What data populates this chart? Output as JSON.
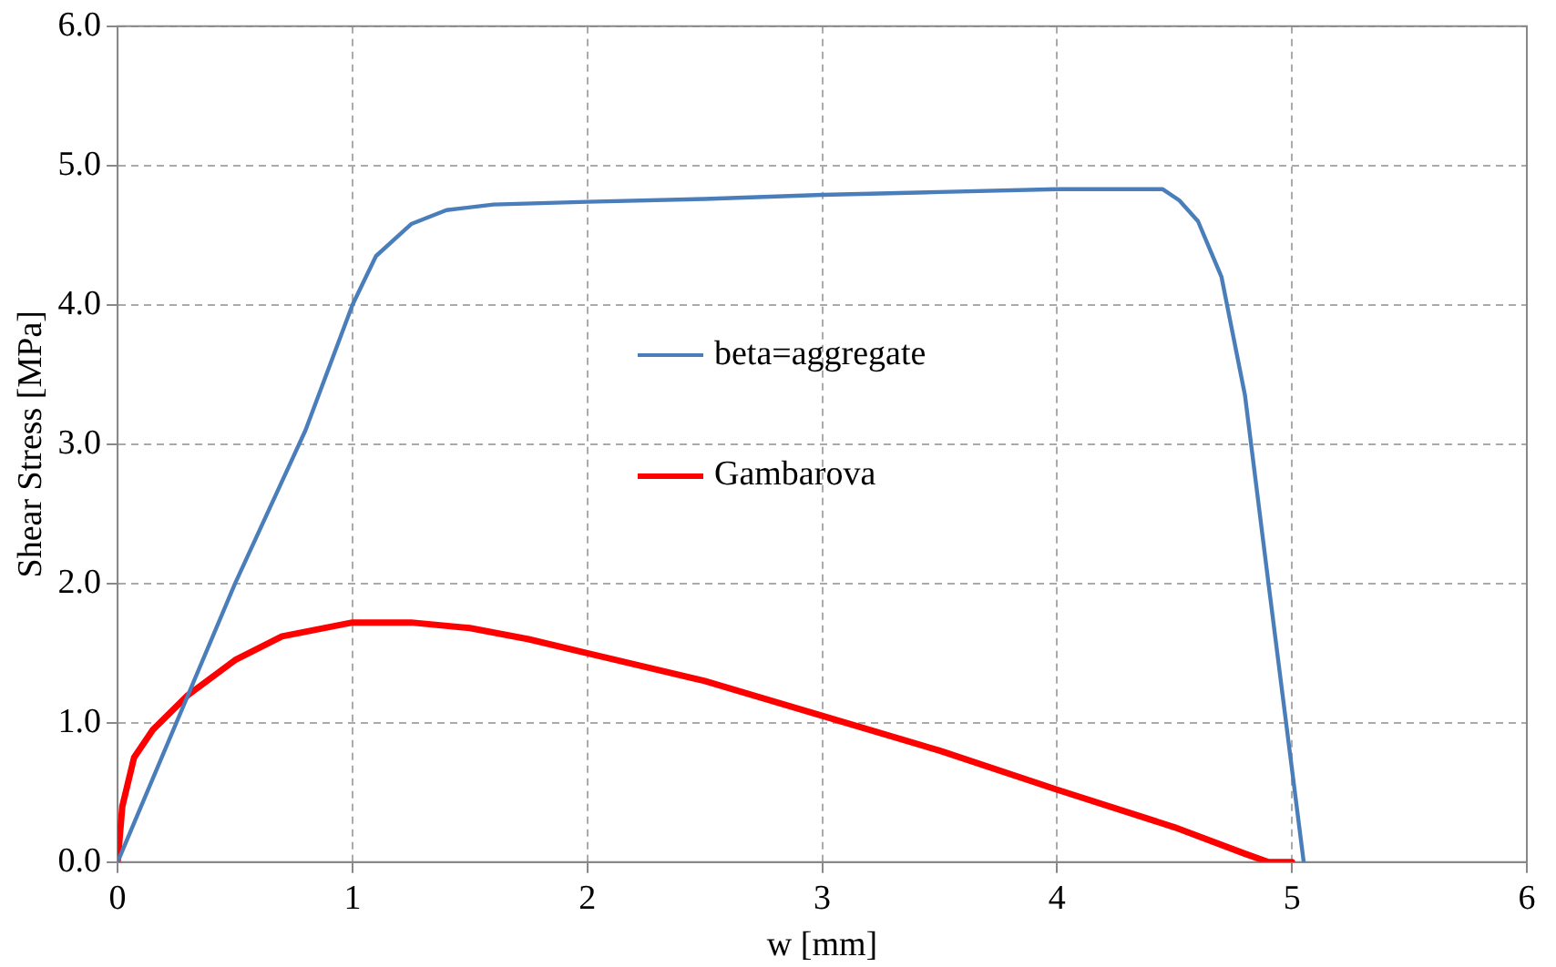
{
  "chart_data": {
    "type": "line",
    "xlabel": "w [mm]",
    "ylabel": "Shear Stress [MPa]",
    "xlim": [
      0,
      6
    ],
    "xticks": [
      0,
      1,
      2,
      3,
      4,
      5,
      6
    ],
    "ylim": [
      0,
      6
    ],
    "yticks": [
      {
        "value": 0,
        "label": "0.0"
      },
      {
        "value": 1,
        "label": "1.0"
      },
      {
        "value": 2,
        "label": "2.0"
      },
      {
        "value": 3,
        "label": "3.0"
      },
      {
        "value": 4,
        "label": "4.0"
      },
      {
        "value": 5,
        "label": "5.0"
      },
      {
        "value": 6,
        "label": "6.0"
      }
    ],
    "grid": true,
    "legend": "center",
    "marker": "none",
    "line_style": "solid",
    "series": [
      {
        "name": "beta=aggregate",
        "color": "#4a7ebb",
        "x": [
          0,
          0.5,
          0.8,
          1.0,
          1.1,
          1.25,
          1.4,
          1.6,
          2.0,
          2.5,
          3.0,
          3.5,
          4.0,
          4.45,
          4.52,
          4.6,
          4.7,
          4.8,
          4.9,
          5.05
        ],
        "values": [
          0,
          2.0,
          3.1,
          4.0,
          4.35,
          4.58,
          4.68,
          4.72,
          4.74,
          4.76,
          4.79,
          4.81,
          4.83,
          4.83,
          4.75,
          4.6,
          4.2,
          3.35,
          2.0,
          0
        ]
      },
      {
        "name": "Gambarova",
        "color": "#ff0000",
        "x": [
          0,
          0.02,
          0.07,
          0.15,
          0.3,
          0.5,
          0.7,
          1.0,
          1.25,
          1.5,
          1.75,
          2.0,
          2.25,
          2.5,
          3.0,
          3.5,
          4.0,
          4.5,
          4.8,
          4.9,
          5.0
        ],
        "values": [
          0,
          0.4,
          0.75,
          0.95,
          1.2,
          1.45,
          1.62,
          1.72,
          1.72,
          1.68,
          1.6,
          1.5,
          1.4,
          1.3,
          1.05,
          0.8,
          0.52,
          0.25,
          0.06,
          0,
          0
        ]
      }
    ]
  }
}
